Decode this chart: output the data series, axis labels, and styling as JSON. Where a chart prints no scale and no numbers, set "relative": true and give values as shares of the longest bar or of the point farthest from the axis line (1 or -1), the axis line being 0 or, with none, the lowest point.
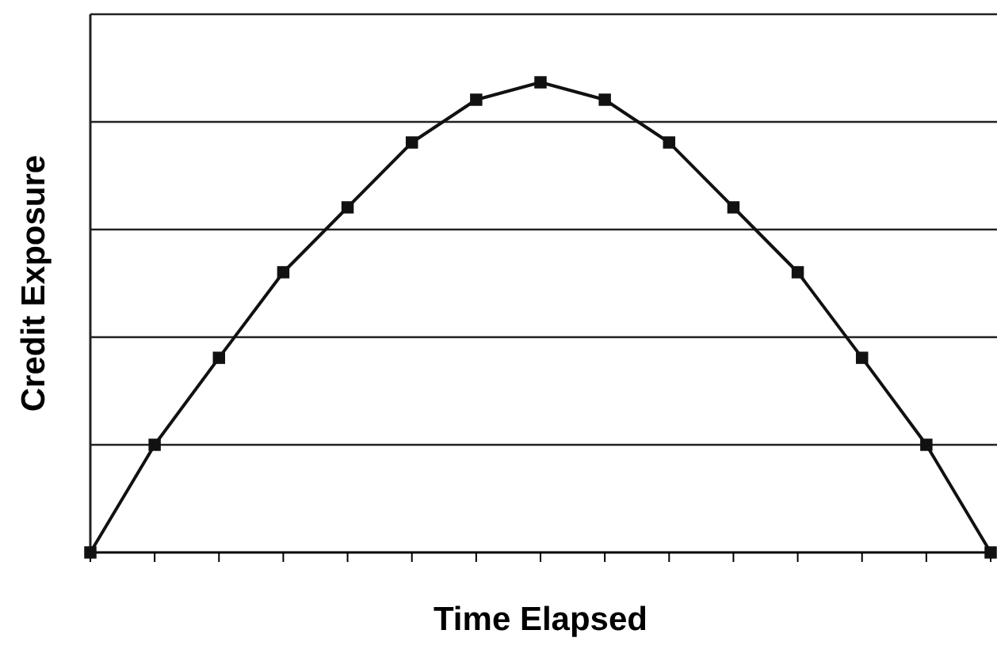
{
  "chart_data": {
    "type": "line",
    "xlabel": "Time Elapsed",
    "ylabel": "Credit Exposure",
    "relative": true,
    "categories": [
      null,
      null,
      null,
      null,
      null,
      null,
      null,
      null,
      null,
      null,
      null,
      null,
      null,
      null,
      null
    ],
    "values": [
      0,
      0.229,
      0.414,
      0.596,
      0.734,
      0.872,
      0.963,
      1,
      0.963,
      0.872,
      0.734,
      0.596,
      0.414,
      0.229,
      0
    ],
    "color": "#111111",
    "marker": "square",
    "line_style": "solid",
    "grid": "y"
  }
}
